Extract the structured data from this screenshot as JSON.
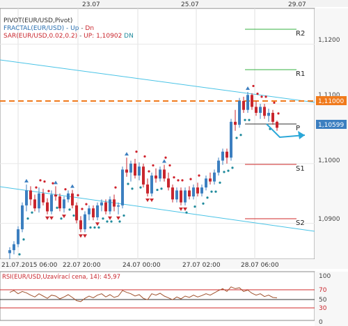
{
  "top_dates": [
    "23.07",
    "25.07",
    "29.07"
  ],
  "indicators": {
    "pivot": "PIVOT(EUR/USD,Pivot)",
    "fractal_name": "FRACTAL(EUR/USD)",
    "fractal_up": "Up",
    "fractal_dn": "Dn",
    "sar_name": "SAR(EUR/USD,0.02,0.2)",
    "sar_up": "UP: 1,10902",
    "sar_dn": "DN"
  },
  "pivot_labels": [
    "R2",
    "R1",
    "P",
    "S1",
    "S2"
  ],
  "price_axis": [
    "1,1200",
    "1,1100",
    "1,1000",
    "1,0900"
  ],
  "current_price": "1,10599",
  "level_price": "1,11000",
  "bottom_dates": [
    "21.07.2015 06:00",
    "22.07 20:00",
    "24.07 00:00",
    "27.07 02:00",
    "28.07 06:00"
  ],
  "rsi": {
    "title": "RSI(EUR/USD,Uzavírací cena, 14): 45,97",
    "axis": [
      "100",
      "70",
      "50",
      "30",
      "0"
    ]
  },
  "colors": {
    "up_candle": "#3c7fc0",
    "down_candle": "#c9262d",
    "sar_up": "#1f8a9c",
    "sar_dn": "#d0202a",
    "trend": "#49c3e6",
    "level": "#f07a1c",
    "resistance": "#36b040",
    "support": "#d02a2a",
    "pivot": "#333333"
  },
  "chart_data": {
    "type": "candlestick",
    "instrument": "EUR/USD",
    "ylim": [
      1.084,
      1.126
    ],
    "candles": [
      [
        1.085,
        1.086,
        1.084,
        1.0855
      ],
      [
        1.0855,
        1.087,
        1.0848,
        1.0865
      ],
      [
        1.0865,
        1.0895,
        1.086,
        1.089
      ],
      [
        1.089,
        1.0935,
        1.0885,
        1.093
      ],
      [
        1.093,
        1.0965,
        1.092,
        1.0955
      ],
      [
        1.0955,
        1.0962,
        1.093,
        1.094
      ],
      [
        1.094,
        1.0948,
        1.092,
        1.0925
      ],
      [
        1.0925,
        1.096,
        1.0918,
        1.095
      ],
      [
        1.095,
        1.0958,
        1.093,
        1.0935
      ],
      [
        1.0935,
        1.0942,
        1.0915,
        1.092
      ],
      [
        1.092,
        1.0955,
        1.0915,
        1.0948
      ],
      [
        1.0948,
        1.0962,
        1.0938,
        1.0945
      ],
      [
        1.0945,
        1.095,
        1.092,
        1.0925
      ],
      [
        1.0925,
        1.0945,
        1.0918,
        1.094
      ],
      [
        1.094,
        1.0955,
        1.0935,
        1.095
      ],
      [
        1.095,
        1.0956,
        1.0925,
        1.093
      ],
      [
        1.093,
        1.0935,
        1.09,
        1.0905
      ],
      [
        1.0905,
        1.0912,
        1.0885,
        1.089
      ],
      [
        1.089,
        1.092,
        1.0885,
        1.0915
      ],
      [
        1.0915,
        1.093,
        1.0905,
        1.0925
      ],
      [
        1.0925,
        1.093,
        1.0905,
        1.091
      ],
      [
        1.091,
        1.0935,
        1.0905,
        1.093
      ],
      [
        1.093,
        1.094,
        1.092,
        1.0935
      ],
      [
        1.0935,
        1.094,
        1.0915,
        1.092
      ],
      [
        1.092,
        1.0945,
        1.0915,
        1.094
      ],
      [
        1.094,
        1.0948,
        1.092,
        1.0928
      ],
      [
        1.0928,
        1.0935,
        1.0915,
        1.093
      ],
      [
        1.093,
        1.0995,
        1.0925,
        1.099
      ],
      [
        1.099,
        1.101,
        1.0978,
        1.0985
      ],
      [
        1.0985,
        1.1005,
        1.097,
        1.1
      ],
      [
        1.1,
        1.1008,
        1.0975,
        1.098
      ],
      [
        1.098,
        1.1002,
        1.0972,
        1.0995
      ],
      [
        1.0995,
        1.1,
        1.096,
        1.0965
      ],
      [
        1.0965,
        1.0975,
        1.0945,
        1.095
      ],
      [
        1.095,
        1.0985,
        1.0945,
        1.098
      ],
      [
        1.098,
        1.0992,
        1.0968,
        1.0975
      ],
      [
        1.0975,
        1.0995,
        1.097,
        1.099
      ],
      [
        1.099,
        1.0998,
        1.097,
        1.0975
      ],
      [
        1.0975,
        1.0985,
        1.0955,
        1.096
      ],
      [
        1.096,
        1.0965,
        1.0935,
        1.094
      ],
      [
        1.094,
        1.096,
        1.0935,
        1.0955
      ],
      [
        1.0955,
        1.096,
        1.093,
        1.0935
      ],
      [
        1.0935,
        1.096,
        1.093,
        1.0955
      ],
      [
        1.0955,
        1.0962,
        1.094,
        1.0945
      ],
      [
        1.0945,
        1.0965,
        1.094,
        1.096
      ],
      [
        1.096,
        1.0968,
        1.0945,
        1.095
      ],
      [
        1.095,
        1.0965,
        1.0945,
        1.096
      ],
      [
        1.096,
        1.098,
        1.0955,
        1.0975
      ],
      [
        1.0975,
        1.0985,
        1.0965,
        1.097
      ],
      [
        1.097,
        1.099,
        1.0965,
        1.0985
      ],
      [
        1.0985,
        1.101,
        1.098,
        1.1005
      ],
      [
        1.1005,
        1.1025,
        1.0998,
        1.102
      ],
      [
        1.102,
        1.1025,
        1.1,
        1.101
      ],
      [
        1.101,
        1.1075,
        1.1005,
        1.107
      ],
      [
        1.107,
        1.109,
        1.1055,
        1.1065
      ],
      [
        1.1065,
        1.111,
        1.106,
        1.1105
      ],
      [
        1.1105,
        1.1112,
        1.1085,
        1.109
      ],
      [
        1.109,
        1.112,
        1.1085,
        1.1115
      ],
      [
        1.1115,
        1.1118,
        1.109,
        1.1095
      ],
      [
        1.1095,
        1.1105,
        1.108,
        1.1085
      ],
      [
        1.1085,
        1.11,
        1.1075,
        1.1095
      ],
      [
        1.1095,
        1.11,
        1.1075,
        1.108
      ],
      [
        1.108,
        1.1092,
        1.107,
        1.1085
      ],
      [
        1.1085,
        1.109,
        1.1065,
        1.107
      ],
      [
        1.107,
        1.1072,
        1.1055,
        1.106
      ]
    ],
    "pivot_levels": {
      "R2": 1.122,
      "R1": 1.115,
      "P": 1.1065,
      "S1": 1.0995,
      "S2": 1.091
    },
    "horizontal_level": 1.11,
    "rsi_values": [
      58,
      62,
      55,
      60,
      57,
      52,
      48,
      55,
      50,
      45,
      52,
      50,
      44,
      48,
      53,
      47,
      40,
      38,
      45,
      50,
      46,
      52,
      55,
      48,
      53,
      47,
      50,
      62,
      58,
      55,
      50,
      53,
      45,
      42,
      55,
      52,
      56,
      50,
      46,
      42,
      48,
      44,
      50,
      47,
      52,
      48,
      51,
      55,
      52,
      57,
      62,
      66,
      60,
      70,
      66,
      68,
      60,
      63,
      56,
      52,
      55,
      49,
      52,
      47,
      46
    ],
    "rsi_ylim": [
      0,
      100
    ],
    "rsi_bands": [
      70,
      50,
      30
    ]
  }
}
